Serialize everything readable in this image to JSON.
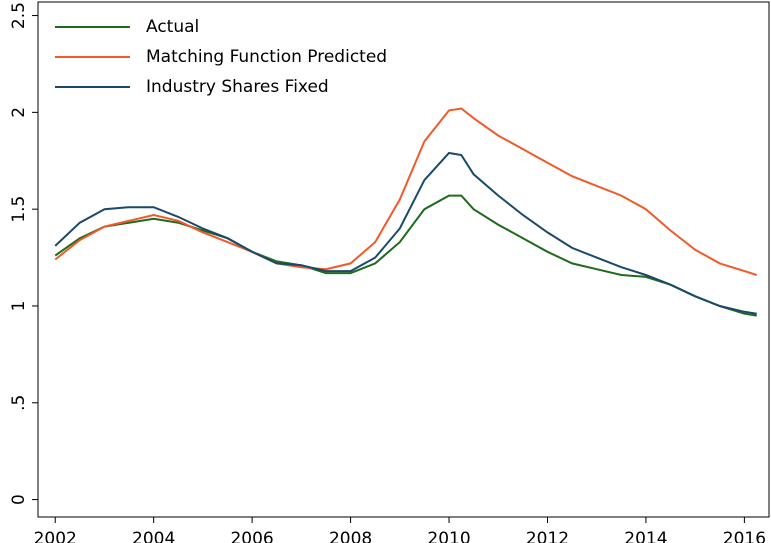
{
  "chart_data": {
    "type": "line",
    "x": [
      2002,
      2002.5,
      2003,
      2003.5,
      2004,
      2004.5,
      2005,
      2005.5,
      2006,
      2006.5,
      2007,
      2007.5,
      2008,
      2008.5,
      2009,
      2009.5,
      2010,
      2010.25,
      2010.5,
      2011,
      2011.5,
      2012,
      2012.5,
      2013,
      2013.5,
      2014,
      2014.5,
      2015,
      2015.5,
      2016,
      2016.25
    ],
    "series": [
      {
        "name": "Actual",
        "color": "#1e6b1e",
        "values": [
          1.26,
          1.35,
          1.41,
          1.43,
          1.45,
          1.43,
          1.39,
          1.35,
          1.28,
          1.23,
          1.21,
          1.17,
          1.17,
          1.22,
          1.33,
          1.5,
          1.57,
          1.57,
          1.5,
          1.42,
          1.35,
          1.28,
          1.22,
          1.19,
          1.16,
          1.15,
          1.11,
          1.05,
          1.0,
          0.96,
          0.95
        ]
      },
      {
        "name": "Matching Function Predicted",
        "color": "#f05a2a",
        "values": [
          1.24,
          1.34,
          1.41,
          1.44,
          1.47,
          1.44,
          1.38,
          1.33,
          1.28,
          1.22,
          1.2,
          1.19,
          1.22,
          1.33,
          1.55,
          1.85,
          2.01,
          2.02,
          1.97,
          1.88,
          1.81,
          1.74,
          1.67,
          1.62,
          1.57,
          1.5,
          1.39,
          1.29,
          1.22,
          1.18,
          1.16
        ]
      },
      {
        "name": "Industry Shares Fixed",
        "color": "#1a4a6a",
        "values": [
          1.31,
          1.43,
          1.5,
          1.51,
          1.51,
          1.46,
          1.4,
          1.35,
          1.28,
          1.22,
          1.21,
          1.18,
          1.18,
          1.25,
          1.4,
          1.65,
          1.79,
          1.78,
          1.68,
          1.57,
          1.47,
          1.38,
          1.3,
          1.25,
          1.2,
          1.16,
          1.11,
          1.05,
          1.0,
          0.97,
          0.96
        ]
      }
    ],
    "xlim": [
      2001.65,
      2016.5
    ],
    "xticks": [
      2002,
      2004,
      2006,
      2008,
      2010,
      2012,
      2014,
      2016
    ],
    "ylim": [
      -0.09,
      2.57
    ],
    "yticks": [
      0,
      {
        "value": 0.5,
        "label": ".5"
      },
      1,
      1.5,
      2,
      2.5
    ],
    "legend": "top-left"
  }
}
